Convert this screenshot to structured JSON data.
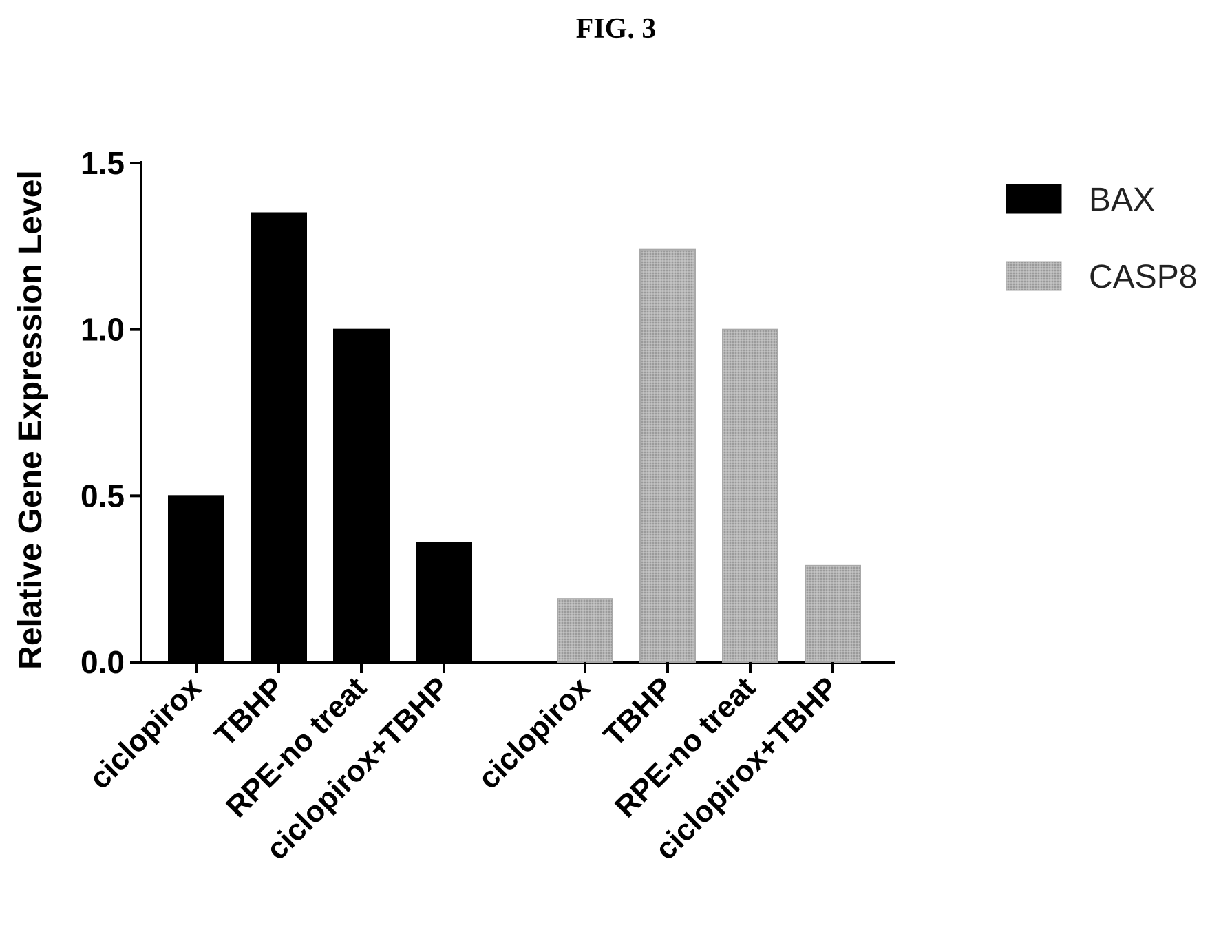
{
  "figure_title": "FIG. 3",
  "chart_data": {
    "type": "bar",
    "title": "",
    "xlabel": "",
    "ylabel": "Relative Gene Expression Level",
    "ylim": [
      0,
      1.5
    ],
    "yticks": [
      "0.0",
      "0.5",
      "1.0",
      "1.5"
    ],
    "ytick_values": [
      0,
      0.5,
      1.0,
      1.5
    ],
    "grid": false,
    "legend_position": "top-right",
    "series": [
      {
        "name": "BAX",
        "color": "#000000",
        "categories": [
          "ciclopirox",
          "TBHP",
          "RPE-no treat",
          "ciclopirox+TBHP"
        ],
        "values": [
          0.5,
          1.35,
          1.0,
          0.36
        ]
      },
      {
        "name": "CASP8",
        "color": "#aaaaaa",
        "categories": [
          "ciclopirox",
          "TBHP",
          "RPE-no treat",
          "ciclopirox+TBHP"
        ],
        "values": [
          0.19,
          1.24,
          1.0,
          0.29
        ]
      }
    ]
  }
}
